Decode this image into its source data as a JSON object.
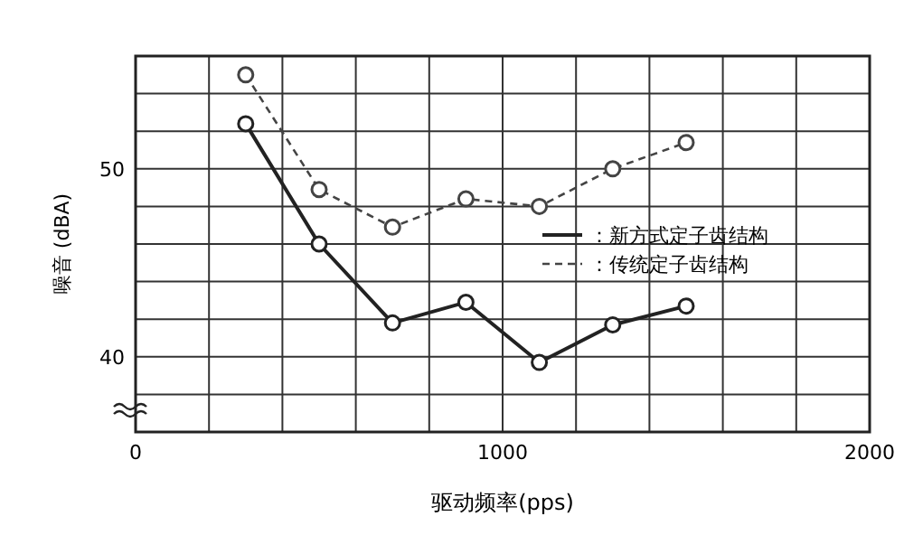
{
  "chart_data": {
    "type": "line",
    "xlabel": "驱动频率(pps)",
    "ylabel": "噪音 (dBA)",
    "xlim": [
      0,
      2000
    ],
    "ylim": [
      36,
      56
    ],
    "xticks": [
      0,
      {
        "value": 200,
        "label": null
      },
      {
        "value": 400,
        "label": null
      },
      {
        "value": 600,
        "label": null
      },
      {
        "value": 800,
        "label": null
      },
      1000,
      {
        "value": 1200,
        "label": null
      },
      {
        "value": 1400,
        "label": null
      },
      {
        "value": 1600,
        "label": null
      },
      {
        "value": 1800,
        "label": null
      },
      2000
    ],
    "yticks": [
      {
        "value": 36,
        "label": null
      },
      {
        "value": 38,
        "label": null
      },
      40,
      {
        "value": 42,
        "label": null
      },
      {
        "value": 44,
        "label": null
      },
      {
        "value": 46,
        "label": null
      },
      {
        "value": 48,
        "label": null
      },
      50,
      {
        "value": 52,
        "label": null
      },
      {
        "value": 54,
        "label": null
      },
      {
        "value": 56,
        "label": null
      }
    ],
    "x": [
      300,
      500,
      700,
      900,
      1100,
      1300,
      1500
    ],
    "series": [
      {
        "name": "：新方式定子齿结构",
        "color": "#222222",
        "line_style": "solid",
        "values": [
          52.4,
          46,
          41.8,
          42.9,
          39.7,
          41.7,
          42.7
        ]
      },
      {
        "name": "：传统定子齿结构",
        "color": "#444444",
        "line_style": "dashed",
        "values": [
          55,
          48.9,
          46.9,
          48.4,
          48,
          50,
          51.4
        ]
      }
    ],
    "grid": true,
    "marker": "circle",
    "legend": "right"
  }
}
